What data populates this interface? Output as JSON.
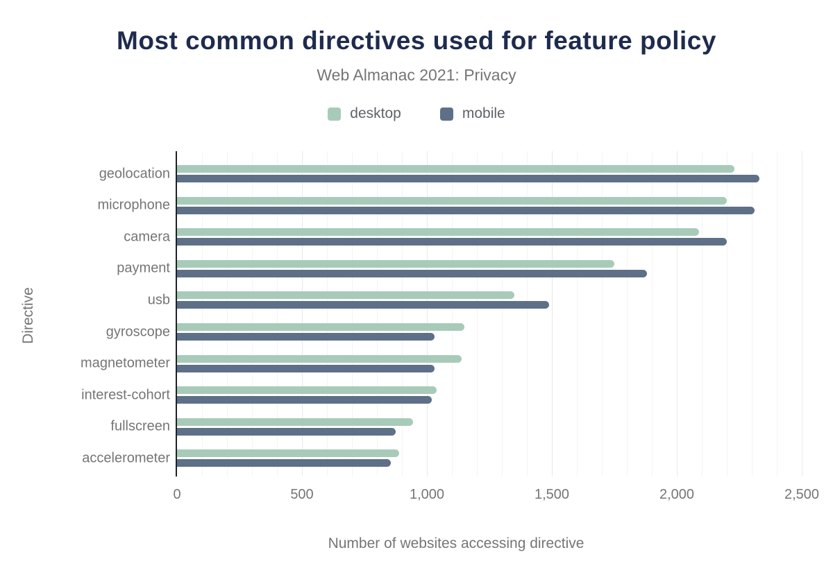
{
  "header": {
    "title": "Most common directives used for feature policy",
    "subtitle": "Web Almanac 2021: Privacy"
  },
  "legend": [
    {
      "label": "desktop",
      "color": "#a8cbb9"
    },
    {
      "label": "mobile",
      "color": "#5e6f88"
    }
  ],
  "axes": {
    "xlabel": "Number of websites accessing directive",
    "ylabel": "Directive"
  },
  "colors": {
    "title": "#1e2b4e",
    "subtitle": "#757575",
    "axis_line": "#202124",
    "tick_label": "#757575",
    "gridline_minor": "#f4f4f4",
    "gridline_major": "#e9e9e9",
    "desktop": "#a8cbb9",
    "mobile": "#5e6f88"
  },
  "chart_data": {
    "type": "bar",
    "orientation": "horizontal",
    "title": "Most common directives used for feature policy",
    "subtitle": "Web Almanac 2021: Privacy",
    "xlabel": "Number of websites accessing directive",
    "ylabel": "Directive",
    "xlim": [
      0,
      2500
    ],
    "x_ticks": [
      "0",
      "500",
      "1,000",
      "1,500",
      "2,000",
      "2,500"
    ],
    "x_tick_values": [
      0,
      500,
      1000,
      1500,
      2000,
      2500
    ],
    "grid_step": 100,
    "grid": true,
    "legend_position": "top",
    "categories": [
      "geolocation",
      "microphone",
      "camera",
      "payment",
      "usb",
      "gyroscope",
      "magnetometer",
      "interest-cohort",
      "fullscreen",
      "accelerometer"
    ],
    "series": [
      {
        "name": "desktop",
        "color": "#a8cbb9",
        "values": [
          2230,
          2200,
          2090,
          1750,
          1350,
          1150,
          1140,
          1040,
          945,
          890
        ]
      },
      {
        "name": "mobile",
        "color": "#5e6f88",
        "values": [
          2330,
          2310,
          2200,
          1880,
          1490,
          1030,
          1030,
          1020,
          875,
          855
        ]
      }
    ]
  }
}
